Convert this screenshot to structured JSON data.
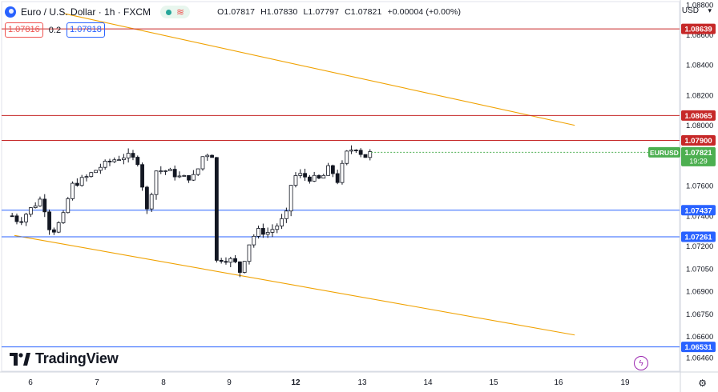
{
  "header": {
    "symbol_title": "Euro / U.S. Dollar · 1h · FXCM",
    "status_icons": [
      "green-dot-icon",
      "wave-icon"
    ],
    "ohlc": {
      "o_label": "O",
      "o": "1.07817",
      "h_label": "H",
      "h": "1.07830",
      "l_label": "L",
      "l": "1.07797",
      "c_label": "C",
      "c": "1.07821",
      "change": "+0.00004 (+0.00%)"
    },
    "sell_price": "1.07816",
    "spread": "0.2",
    "buy_price": "1.07818"
  },
  "currency_label": "USD",
  "brand": "TradingView",
  "colors": {
    "up": "#26a69a",
    "down": "#ef5350",
    "candle": "#131722",
    "resistance": "#c62828",
    "support": "#2962ff",
    "channel": "#f0a202",
    "last_price": "#4caf50"
  },
  "chart_data": {
    "type": "candlestick",
    "title": "Euro / U.S. Dollar · 1h · FXCM",
    "x_tick_labels": [
      "6",
      "7",
      "8",
      "9",
      "12",
      "13",
      "14",
      "15",
      "16",
      "19"
    ],
    "x_tick_bold": [
      "12"
    ],
    "y_range": [
      1.0637,
      1.0882
    ],
    "y_ticks": [
      "1.08800",
      "1.08600",
      "1.08400",
      "1.08200",
      "1.08000",
      "1.07800",
      "1.07600",
      "1.07400",
      "1.07200",
      "1.07050",
      "1.06900",
      "1.06750",
      "1.06600",
      "1.06460"
    ],
    "horizontal_levels": [
      {
        "value": 1.08639,
        "label": "1.08639",
        "kind": "resistance"
      },
      {
        "value": 1.08065,
        "label": "1.08065",
        "kind": "resistance"
      },
      {
        "value": 1.079,
        "label": "1.07900",
        "kind": "resistance"
      },
      {
        "value": 1.07437,
        "label": "1.07437",
        "kind": "support"
      },
      {
        "value": 1.07261,
        "label": "1.07261",
        "kind": "support"
      },
      {
        "value": 1.06531,
        "label": "1.06531",
        "kind": "support"
      }
    ],
    "channel_lines": [
      {
        "from_day": 6.75,
        "from_price": 1.0874,
        "to_day": 19.9,
        "to_price": 1.08
      },
      {
        "from_day": 5.65,
        "from_price": 1.0727,
        "to_day": 19.9,
        "to_price": 1.0661
      }
    ],
    "last_price": {
      "label": "EURUSD",
      "value": "1.07821",
      "countdown": "19:29"
    },
    "closes": [
      {
        "day": 5.6,
        "price": 1.074
      },
      {
        "day": 5.75,
        "price": 1.0736
      },
      {
        "day": 5.95,
        "price": 1.0743
      },
      {
        "day": 6.25,
        "price": 1.0752
      },
      {
        "day": 6.45,
        "price": 1.0728
      },
      {
        "day": 6.7,
        "price": 1.0738
      },
      {
        "day": 6.9,
        "price": 1.076
      },
      {
        "day": 7.2,
        "price": 1.0765
      },
      {
        "day": 7.5,
        "price": 1.0772
      },
      {
        "day": 7.8,
        "price": 1.0777
      },
      {
        "day": 8.1,
        "price": 1.078
      },
      {
        "day": 8.35,
        "price": 1.0776
      },
      {
        "day": 8.55,
        "price": 1.0743
      },
      {
        "day": 8.75,
        "price": 1.077
      },
      {
        "day": 9.0,
        "price": 1.077
      },
      {
        "day": 9.3,
        "price": 1.0765
      },
      {
        "day": 9.6,
        "price": 1.0766
      },
      {
        "day": 9.8,
        "price": 1.0782
      },
      {
        "day": 10.0,
        "price": 1.078
      },
      {
        "day": 10.15,
        "price": 1.0797
      },
      {
        "day": 10.3,
        "price": 1.0791
      },
      {
        "day": 10.45,
        "price": 1.0768
      },
      {
        "day": 10.65,
        "price": 1.0765
      },
      {
        "day": 10.85,
        "price": 1.0768
      },
      {
        "day": 11.05,
        "price": 1.077
      },
      {
        "day": 11.3,
        "price": 1.077
      },
      {
        "day": 11.5,
        "price": 1.0765
      },
      {
        "day": 11.65,
        "price": 1.0778
      },
      {
        "day": 11.75,
        "price": 1.071
      },
      {
        "day": 11.95,
        "price": 1.0708
      },
      {
        "day": 12.2,
        "price": 1.0712
      },
      {
        "day": 12.45,
        "price": 1.071
      },
      {
        "day": 12.6,
        "price": 1.0702
      },
      {
        "day": 12.75,
        "price": 1.072
      },
      {
        "day": 12.95,
        "price": 1.073
      },
      {
        "day": 13.2,
        "price": 1.0729
      },
      {
        "day": 13.45,
        "price": 1.0735
      },
      {
        "day": 13.62,
        "price": 1.0742
      },
      {
        "day": 13.72,
        "price": 1.0766
      },
      {
        "day": 13.9,
        "price": 1.0767
      },
      {
        "day": 14.1,
        "price": 1.0765
      },
      {
        "day": 14.35,
        "price": 1.0764
      },
      {
        "day": 14.55,
        "price": 1.0773
      },
      {
        "day": 14.7,
        "price": 1.0762
      },
      {
        "day": 14.9,
        "price": 1.0781
      },
      {
        "day": 15.1,
        "price": 1.0786
      },
      {
        "day": 15.3,
        "price": 1.0779
      },
      {
        "day": 15.45,
        "price": 1.0782
      }
    ]
  }
}
